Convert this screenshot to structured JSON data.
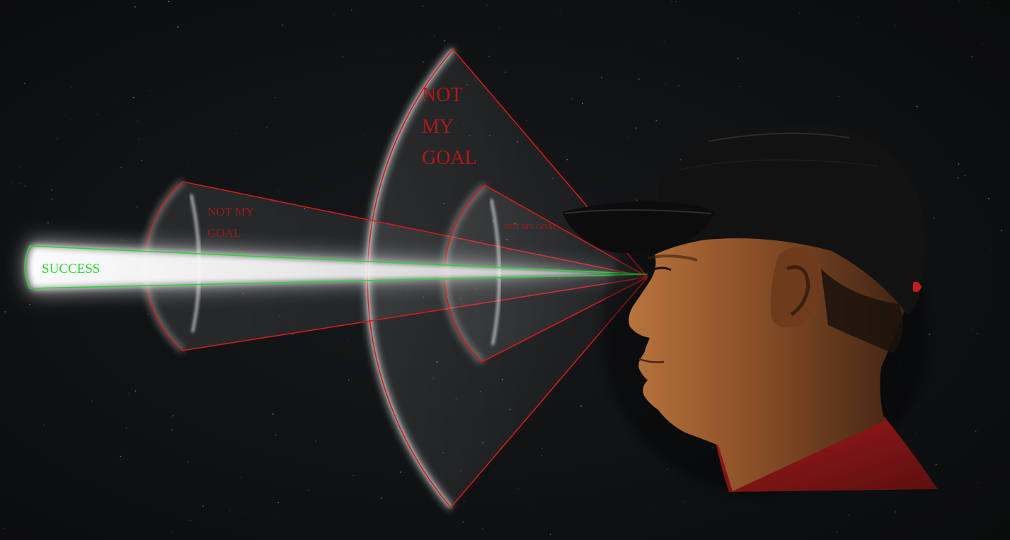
{
  "labels": {
    "success": "SUCCESS",
    "small_cone": "NOT MY GOAL",
    "small_cone_lines": [
      "NOT MY",
      "GOAL"
    ],
    "big_cone_lines": [
      "NOT",
      "MY",
      "GOAL"
    ],
    "near_cone": "NOT MY GOAL"
  },
  "colors": {
    "background": "#0d0e10",
    "goal_outline": "#2bd43a",
    "cone_outline": "#d01c1c",
    "glow": "#ffffff",
    "label_red": "#b01818"
  },
  "icons": {
    "figure": "person-profile-with-cap-icon"
  }
}
